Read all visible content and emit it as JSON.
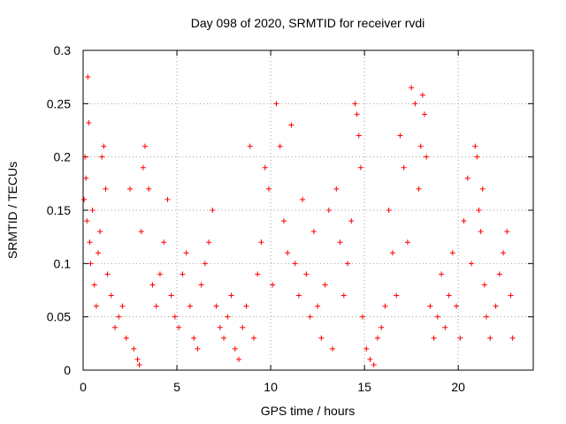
{
  "chart_data": {
    "type": "scatter",
    "title": "Day 098 of 2020, SRMTID for receiver rvdi",
    "xlabel": "GPS time / hours",
    "ylabel": "SRMTID / TECUs",
    "xlim": [
      0,
      24
    ],
    "ylim": [
      0,
      0.3
    ],
    "x_ticks": [
      "0",
      "5",
      "10",
      "15",
      "20"
    ],
    "y_ticks": [
      "0",
      "0.05",
      "0.1",
      "0.15",
      "0.2",
      "0.25",
      "0.3"
    ],
    "grid": true,
    "legend": "none",
    "series": [
      {
        "color": "#ff0000",
        "marker": "plus",
        "points": [
          [
            0.05,
            0.16
          ],
          [
            0.1,
            0.2
          ],
          [
            0.15,
            0.18
          ],
          [
            0.2,
            0.14
          ],
          [
            0.25,
            0.275
          ],
          [
            0.3,
            0.232
          ],
          [
            0.35,
            0.12
          ],
          [
            0.4,
            0.1
          ],
          [
            0.5,
            0.15
          ],
          [
            0.6,
            0.08
          ],
          [
            0.7,
            0.06
          ],
          [
            0.8,
            0.11
          ],
          [
            0.9,
            0.13
          ],
          [
            1.0,
            0.2
          ],
          [
            1.1,
            0.21
          ],
          [
            1.2,
            0.17
          ],
          [
            1.3,
            0.09
          ],
          [
            1.5,
            0.07
          ],
          [
            1.7,
            0.04
          ],
          [
            1.9,
            0.05
          ],
          [
            2.1,
            0.06
          ],
          [
            2.3,
            0.03
          ],
          [
            2.5,
            0.17
          ],
          [
            2.7,
            0.02
          ],
          [
            2.9,
            0.01
          ],
          [
            3.0,
            0.005
          ],
          [
            3.1,
            0.13
          ],
          [
            3.2,
            0.19
          ],
          [
            3.3,
            0.21
          ],
          [
            3.5,
            0.17
          ],
          [
            3.7,
            0.08
          ],
          [
            3.9,
            0.06
          ],
          [
            4.1,
            0.09
          ],
          [
            4.3,
            0.12
          ],
          [
            4.5,
            0.16
          ],
          [
            4.7,
            0.07
          ],
          [
            4.9,
            0.05
          ],
          [
            5.1,
            0.04
          ],
          [
            5.3,
            0.09
          ],
          [
            5.5,
            0.11
          ],
          [
            5.7,
            0.06
          ],
          [
            5.9,
            0.03
          ],
          [
            6.1,
            0.02
          ],
          [
            6.3,
            0.08
          ],
          [
            6.5,
            0.1
          ],
          [
            6.7,
            0.12
          ],
          [
            6.9,
            0.15
          ],
          [
            7.1,
            0.06
          ],
          [
            7.3,
            0.04
          ],
          [
            7.5,
            0.03
          ],
          [
            7.7,
            0.05
          ],
          [
            7.9,
            0.07
          ],
          [
            8.1,
            0.02
          ],
          [
            8.3,
            0.01
          ],
          [
            8.5,
            0.04
          ],
          [
            8.7,
            0.06
          ],
          [
            8.9,
            0.21
          ],
          [
            9.1,
            0.03
          ],
          [
            9.3,
            0.09
          ],
          [
            9.5,
            0.12
          ],
          [
            9.7,
            0.19
          ],
          [
            9.9,
            0.17
          ],
          [
            10.1,
            0.08
          ],
          [
            10.3,
            0.25
          ],
          [
            10.5,
            0.21
          ],
          [
            10.7,
            0.14
          ],
          [
            10.9,
            0.11
          ],
          [
            11.1,
            0.23
          ],
          [
            11.3,
            0.1
          ],
          [
            11.5,
            0.07
          ],
          [
            11.7,
            0.16
          ],
          [
            11.9,
            0.09
          ],
          [
            12.1,
            0.05
          ],
          [
            12.3,
            0.13
          ],
          [
            12.5,
            0.06
          ],
          [
            12.7,
            0.03
          ],
          [
            12.9,
            0.08
          ],
          [
            13.1,
            0.15
          ],
          [
            13.3,
            0.02
          ],
          [
            13.5,
            0.17
          ],
          [
            13.7,
            0.12
          ],
          [
            13.9,
            0.07
          ],
          [
            14.1,
            0.1
          ],
          [
            14.3,
            0.14
          ],
          [
            14.5,
            0.25
          ],
          [
            14.6,
            0.24
          ],
          [
            14.7,
            0.22
          ],
          [
            14.8,
            0.19
          ],
          [
            14.9,
            0.05
          ],
          [
            15.1,
            0.02
          ],
          [
            15.3,
            0.01
          ],
          [
            15.5,
            0.005
          ],
          [
            15.7,
            0.03
          ],
          [
            15.9,
            0.04
          ],
          [
            16.1,
            0.06
          ],
          [
            16.3,
            0.15
          ],
          [
            16.5,
            0.11
          ],
          [
            16.7,
            0.07
          ],
          [
            16.9,
            0.22
          ],
          [
            17.1,
            0.19
          ],
          [
            17.3,
            0.12
          ],
          [
            17.5,
            0.265
          ],
          [
            17.7,
            0.25
          ],
          [
            17.9,
            0.17
          ],
          [
            18.0,
            0.21
          ],
          [
            18.1,
            0.258
          ],
          [
            18.2,
            0.24
          ],
          [
            18.3,
            0.2
          ],
          [
            18.5,
            0.06
          ],
          [
            18.7,
            0.03
          ],
          [
            18.9,
            0.05
          ],
          [
            19.1,
            0.09
          ],
          [
            19.3,
            0.04
          ],
          [
            19.5,
            0.07
          ],
          [
            19.7,
            0.11
          ],
          [
            19.9,
            0.06
          ],
          [
            20.1,
            0.03
          ],
          [
            20.3,
            0.14
          ],
          [
            20.5,
            0.18
          ],
          [
            20.7,
            0.1
          ],
          [
            20.9,
            0.21
          ],
          [
            21.0,
            0.2
          ],
          [
            21.1,
            0.15
          ],
          [
            21.2,
            0.13
          ],
          [
            21.3,
            0.17
          ],
          [
            21.4,
            0.08
          ],
          [
            21.5,
            0.05
          ],
          [
            21.7,
            0.03
          ],
          [
            22.0,
            0.06
          ],
          [
            22.2,
            0.09
          ],
          [
            22.4,
            0.11
          ],
          [
            22.6,
            0.13
          ],
          [
            22.8,
            0.07
          ],
          [
            22.9,
            0.03
          ]
        ]
      }
    ]
  }
}
